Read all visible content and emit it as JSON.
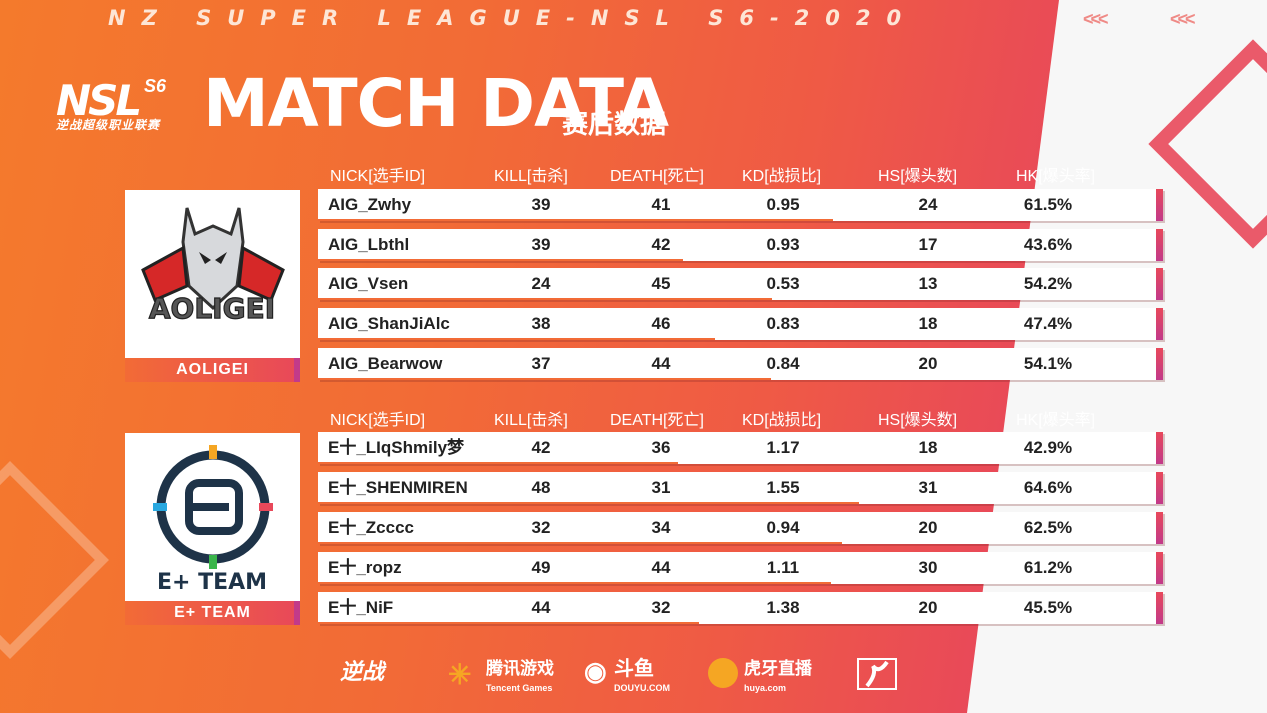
{
  "header": {
    "tagline": "NZ SUPER LEAGUE-NSL S6-2020",
    "chevrons_left": "<<<",
    "chevrons_right": "<<<",
    "logo_main": "NSL",
    "logo_s6": "S6",
    "logo_sub": "逆战超级职业联赛",
    "title": "MATCH DATA",
    "subtitle": "赛后数据"
  },
  "columns": {
    "nick": "NICK[选手ID]",
    "kill": "KILL[击杀]",
    "death": "DEATH[死亡]",
    "kd": "KD[战损比]",
    "hs": "HS[爆头数]",
    "hk": "HK[爆头率]"
  },
  "teams": [
    {
      "name": "AOLIGEI",
      "crest_text": "AOLIGEI",
      "players": [
        {
          "nick": "AIG_Zwhy",
          "kill": "39",
          "death": "41",
          "kd": "0.95",
          "hs": "24",
          "hk": "61.5%",
          "hk_value": 61.5
        },
        {
          "nick": "AIG_Lbthl",
          "kill": "39",
          "death": "42",
          "kd": "0.93",
          "hs": "17",
          "hk": "43.6%",
          "hk_value": 43.6
        },
        {
          "nick": "AIG_Vsen",
          "kill": "24",
          "death": "45",
          "kd": "0.53",
          "hs": "13",
          "hk": "54.2%",
          "hk_value": 54.2
        },
        {
          "nick": "AIG_ShanJiAlc",
          "kill": "38",
          "death": "46",
          "kd": "0.83",
          "hs": "18",
          "hk": "47.4%",
          "hk_value": 47.4
        },
        {
          "nick": "AIG_Bearwow",
          "kill": "37",
          "death": "44",
          "kd": "0.84",
          "hs": "20",
          "hk": "54.1%",
          "hk_value": 54.1
        }
      ]
    },
    {
      "name": "E+ TEAM",
      "crest_text": "E+ TEAM",
      "players": [
        {
          "nick": "E十_LIqShmily梦",
          "kill": "42",
          "death": "36",
          "kd": "1.17",
          "hs": "18",
          "hk": "42.9%",
          "hk_value": 42.9
        },
        {
          "nick": "E十_SHENMIREN",
          "kill": "48",
          "death": "31",
          "kd": "1.55",
          "hs": "31",
          "hk": "64.6%",
          "hk_value": 64.6
        },
        {
          "nick": "E十_Zcccc",
          "kill": "32",
          "death": "34",
          "kd": "0.94",
          "hs": "20",
          "hk": "62.5%",
          "hk_value": 62.5
        },
        {
          "nick": "E十_ropz",
          "kill": "49",
          "death": "44",
          "kd": "1.11",
          "hs": "30",
          "hk": "61.2%",
          "hk_value": 61.2
        },
        {
          "nick": "E十_NiF",
          "kill": "44",
          "death": "32",
          "kd": "1.38",
          "hs": "20",
          "hk": "45.5%",
          "hk_value": 45.5
        }
      ]
    }
  ],
  "sponsors": [
    {
      "name": "逆战",
      "sub": ""
    },
    {
      "name": "腾讯游戏",
      "sub": "Tencent Games"
    },
    {
      "name": "斗鱼",
      "sub": "DOUYU.COM"
    },
    {
      "name": "虎牙直播",
      "sub": "huya.com"
    }
  ],
  "colors": {
    "orange": "#f47a2c",
    "red": "#e8485a",
    "magenta": "#c23a8a",
    "white": "#ffffff"
  }
}
